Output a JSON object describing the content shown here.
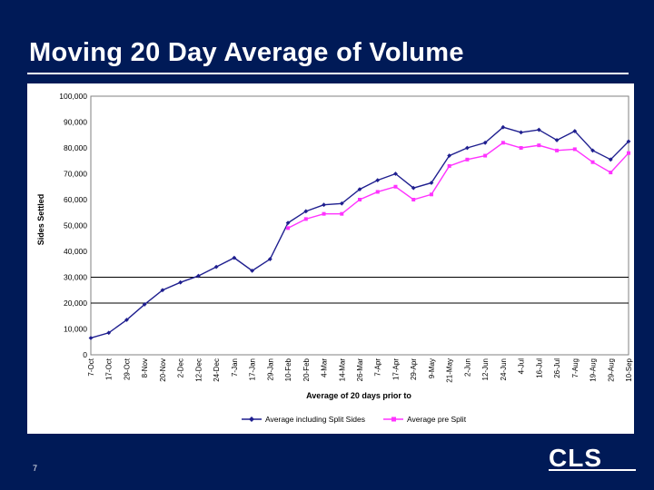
{
  "slide": {
    "title": "Moving 20 Day Average of Volume",
    "page_number": "7",
    "logo_text": "CLS"
  },
  "colors": {
    "background": "#001a57",
    "series_dark": "#1f1f8f",
    "series_pink": "#ff33ff",
    "plot_bg": "#ffffff"
  },
  "chart_data": {
    "type": "line",
    "title": "",
    "xlabel": "Average of 20 days prior to",
    "ylabel": "Sides Settled",
    "ylim": [
      0,
      100000
    ],
    "y_ticks": [
      "100,000",
      "90,000",
      "80,000",
      "70,000",
      "60,000",
      "50,000",
      "40,000",
      "30,000",
      "20,000",
      "10,000",
      "0"
    ],
    "y_tick_values": [
      100000,
      90000,
      80000,
      70000,
      60000,
      50000,
      40000,
      30000,
      20000,
      10000,
      0
    ],
    "reference_lines": [
      30000,
      20000
    ],
    "categories": [
      "7-Oct",
      "17-Oct",
      "29-Oct",
      "8-Nov",
      "20-Nov",
      "2-Dec",
      "12-Dec",
      "24-Dec",
      "7-Jan",
      "17-Jan",
      "29-Jan",
      "10-Feb",
      "20-Feb",
      "4-Mar",
      "14-Mar",
      "26-Mar",
      "7-Apr",
      "17-Apr",
      "29-Apr",
      "9-May",
      "21-May",
      "2-Jun",
      "12-Jun",
      "24-Jun",
      "4-Jul",
      "16-Jul",
      "26-Jul",
      "7-Aug",
      "19-Aug",
      "29-Aug",
      "10-Sep"
    ],
    "legend_position": "bottom",
    "series": [
      {
        "name": "Average including Split Sides",
        "color": "#1f1f8f",
        "marker": "diamond",
        "values": [
          6500,
          8500,
          13500,
          19500,
          25000,
          28000,
          30500,
          34000,
          37500,
          32500,
          37000,
          51000,
          55500,
          58000,
          58500,
          64000,
          67500,
          70000,
          64500,
          66500,
          77000,
          80000,
          82000,
          88000,
          86000,
          87000,
          83000,
          86500,
          79000,
          75500,
          82500
        ]
      },
      {
        "name": "Average pre Split",
        "color": "#ff33ff",
        "marker": "square",
        "start_index": 11,
        "values": [
          null,
          null,
          null,
          null,
          null,
          null,
          null,
          null,
          null,
          null,
          null,
          49000,
          52500,
          54500,
          54500,
          60000,
          63000,
          65000,
          60000,
          62000,
          73000,
          75500,
          77000,
          82000,
          80000,
          81000,
          79000,
          79500,
          74500,
          70500,
          78000
        ]
      }
    ]
  }
}
